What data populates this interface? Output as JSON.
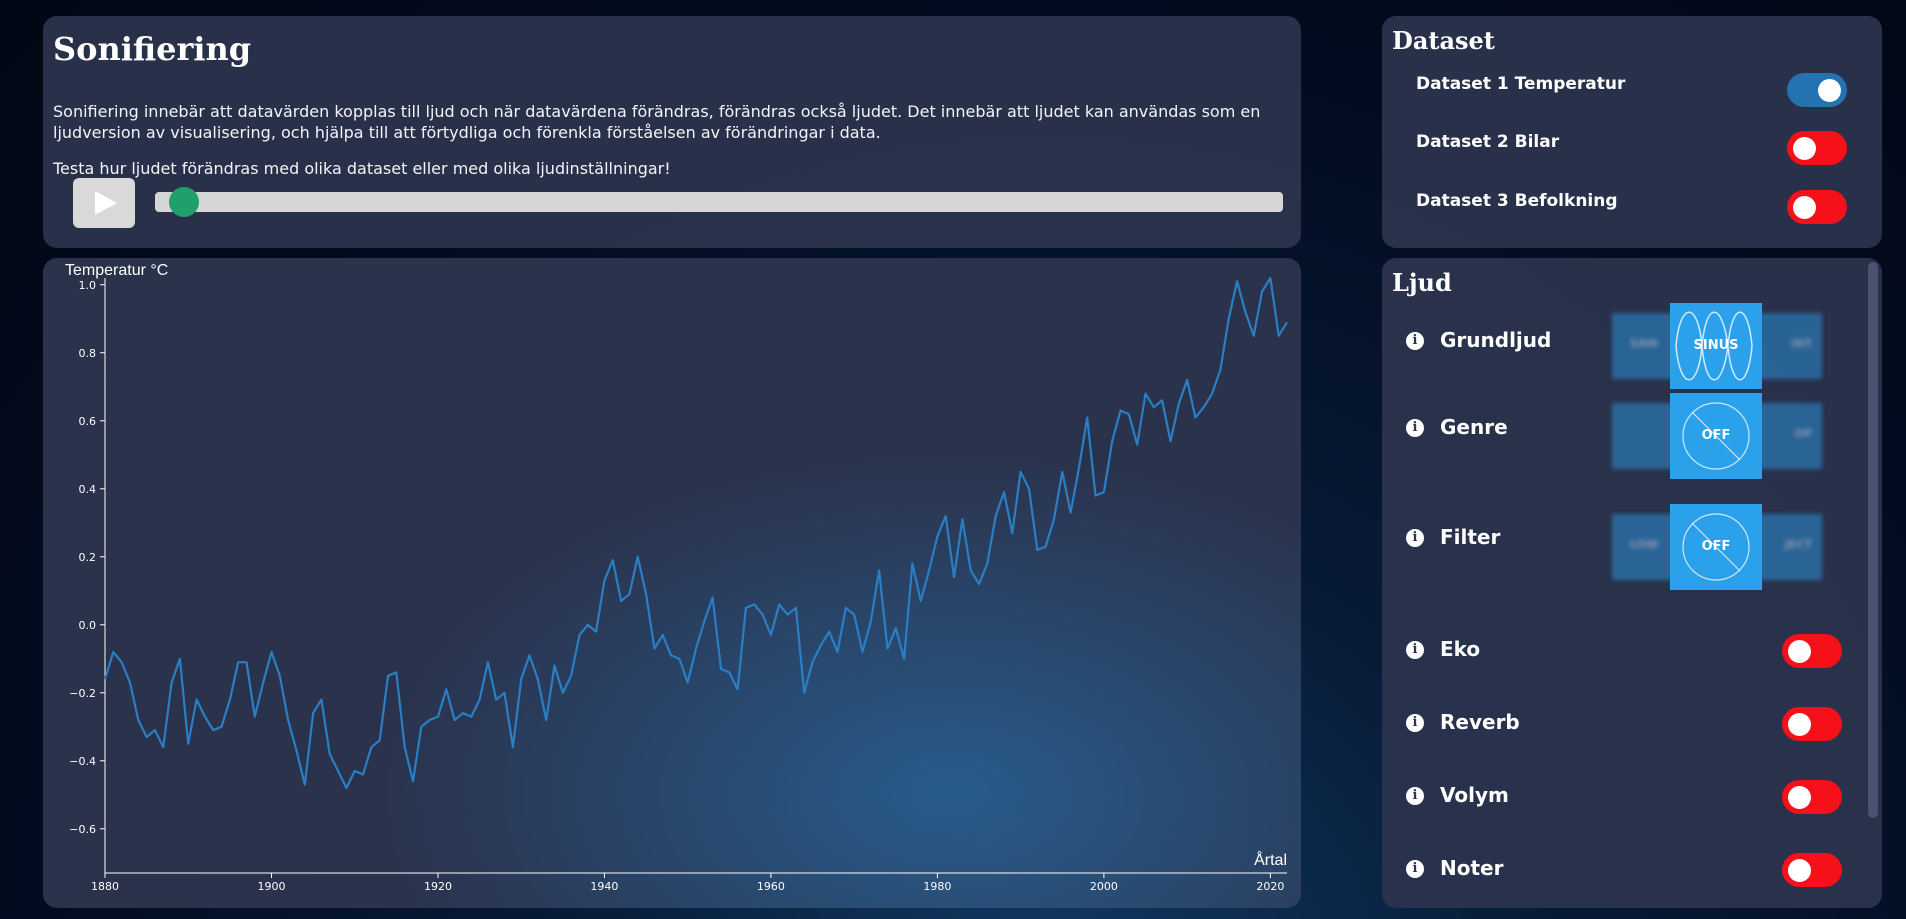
{
  "intro": {
    "title": "Sonifiering",
    "paragraph1": "Sonifiering innebär att datavärden kopplas till ljud och när datavärdena förändras, förändras också ljudet. Det innebär att ljudet kan användas som en ljudversion av visualisering, och hjälpa till att förtydliga och förenkla förståelsen av förändringar i data.",
    "paragraph2": "Testa hur ljudet förändras med olika dataset eller med olika ljudinställningar!",
    "progress": 0.012
  },
  "dataset": {
    "title": "Dataset",
    "items": [
      {
        "label": "Dataset 1 Temperatur",
        "on": true
      },
      {
        "label": "Dataset 2 Bilar",
        "on": false
      },
      {
        "label": "Dataset 3 Befolkning",
        "on": false
      }
    ]
  },
  "sound": {
    "title": "Ljud",
    "carousels": [
      {
        "label": "Grundljud",
        "left": "SAW",
        "center": "SINUS",
        "right": "INT",
        "center_kind": "sine"
      },
      {
        "label": "Genre",
        "left": "",
        "center": "OFF",
        "right": "OP",
        "center_kind": "off"
      },
      {
        "label": "Filter",
        "left": "LOW",
        "center": "OFF",
        "right": "JECT",
        "center_kind": "off"
      }
    ],
    "toggles": [
      {
        "label": "Eko",
        "on": false
      },
      {
        "label": "Reverb",
        "on": false
      },
      {
        "label": "Volym",
        "on": false
      },
      {
        "label": "Noter",
        "on": false
      }
    ],
    "info_glyph": "i"
  },
  "colors": {
    "line": "#2a7fc4",
    "toggle_on": "#2473b0",
    "toggle_off": "#f5101a",
    "thumb": "#1fa06a",
    "carousel": "#2aa1ea"
  },
  "chart_data": {
    "type": "line",
    "ylabel": "Temperatur °C",
    "xlabel": "Årtal",
    "xlim": [
      1880,
      2022
    ],
    "ylim": [
      -0.73,
      1.02
    ],
    "x_ticks": [
      1880,
      1900,
      1920,
      1940,
      1960,
      1980,
      2000,
      2020
    ],
    "y_ticks": [
      "1.0",
      "0.8",
      "0.6",
      "0.4",
      "0.2",
      "0.0",
      "−0.2",
      "−0.4",
      "−0.6"
    ],
    "y_tick_values": [
      1.0,
      0.8,
      0.6,
      0.4,
      0.2,
      0.0,
      -0.2,
      -0.4,
      -0.6
    ],
    "series": [
      {
        "x": [
          1880,
          1881,
          1882,
          1883,
          1884,
          1885,
          1886,
          1887,
          1888,
          1889,
          1890,
          1891,
          1892,
          1893,
          1894,
          1895,
          1896,
          1897,
          1898,
          1899,
          1900,
          1901,
          1902,
          1903,
          1904,
          1905,
          1906,
          1907,
          1908,
          1909,
          1910,
          1911,
          1912,
          1913,
          1914,
          1915,
          1916,
          1917,
          1918,
          1919,
          1920,
          1921,
          1922,
          1923,
          1924,
          1925,
          1926,
          1927,
          1928,
          1929,
          1930,
          1931,
          1932,
          1933,
          1934,
          1935,
          1936,
          1937,
          1938,
          1939,
          1940,
          1941,
          1942,
          1943,
          1944,
          1945,
          1946,
          1947,
          1948,
          1949,
          1950,
          1951,
          1952,
          1953,
          1954,
          1955,
          1956,
          1957,
          1958,
          1959,
          1960,
          1961,
          1962,
          1963,
          1964,
          1965,
          1966,
          1967,
          1968,
          1969,
          1970,
          1971,
          1972,
          1973,
          1974,
          1975,
          1976,
          1977,
          1978,
          1979,
          1980,
          1981,
          1982,
          1983,
          1984,
          1985,
          1986,
          1987,
          1988,
          1989,
          1990,
          1991,
          1992,
          1993,
          1994,
          1995,
          1996,
          1997,
          1998,
          1999,
          2000,
          2001,
          2002,
          2003,
          2004,
          2005,
          2006,
          2007,
          2008,
          2009,
          2010,
          2011,
          2012,
          2013,
          2014,
          2015,
          2016,
          2017,
          2018,
          2019,
          2020,
          2021,
          2022
        ],
        "values": [
          -0.16,
          -0.08,
          -0.11,
          -0.17,
          -0.28,
          -0.33,
          -0.31,
          -0.36,
          -0.17,
          -0.1,
          -0.35,
          -0.22,
          -0.27,
          -0.31,
          -0.3,
          -0.22,
          -0.11,
          -0.11,
          -0.27,
          -0.17,
          -0.08,
          -0.15,
          -0.28,
          -0.37,
          -0.47,
          -0.26,
          -0.22,
          -0.38,
          -0.43,
          -0.48,
          -0.43,
          -0.44,
          -0.36,
          -0.34,
          -0.15,
          -0.14,
          -0.36,
          -0.46,
          -0.3,
          -0.28,
          -0.27,
          -0.19,
          -0.28,
          -0.26,
          -0.27,
          -0.22,
          -0.11,
          -0.22,
          -0.2,
          -0.36,
          -0.16,
          -0.09,
          -0.16,
          -0.28,
          -0.12,
          -0.2,
          -0.15,
          -0.03,
          0.0,
          -0.02,
          0.13,
          0.19,
          0.07,
          0.09,
          0.2,
          0.09,
          -0.07,
          -0.03,
          -0.09,
          -0.1,
          -0.17,
          -0.07,
          0.01,
          0.08,
          -0.13,
          -0.14,
          -0.19,
          0.05,
          0.06,
          0.03,
          -0.03,
          0.06,
          0.03,
          0.05,
          -0.2,
          -0.11,
          -0.06,
          -0.02,
          -0.08,
          0.05,
          0.03,
          -0.08,
          0.01,
          0.16,
          -0.07,
          -0.01,
          -0.1,
          0.18,
          0.07,
          0.16,
          0.26,
          0.32,
          0.14,
          0.31,
          0.16,
          0.12,
          0.18,
          0.32,
          0.39,
          0.27,
          0.45,
          0.4,
          0.22,
          0.23,
          0.31,
          0.45,
          0.33,
          0.46,
          0.61,
          0.38,
          0.39,
          0.54,
          0.63,
          0.62,
          0.53,
          0.68,
          0.64,
          0.66,
          0.54,
          0.65,
          0.72,
          0.61,
          0.64,
          0.68,
          0.75,
          0.9,
          1.01,
          0.92,
          0.85,
          0.98,
          1.02,
          0.85,
          0.89
        ]
      }
    ]
  }
}
